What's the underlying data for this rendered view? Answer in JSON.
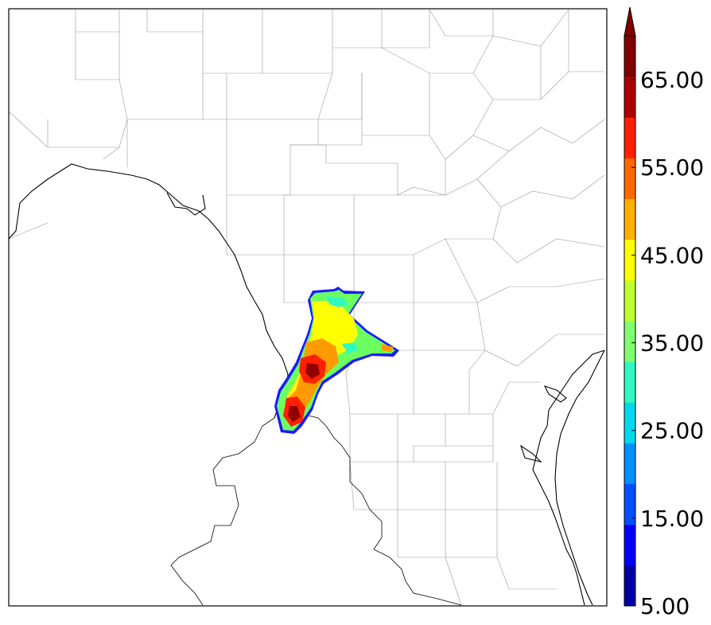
{
  "colorbar": {
    "min": 5,
    "max": 70,
    "step": 5,
    "extend": "max",
    "tick_labels": [
      "5.00",
      "15.00",
      "25.00",
      "35.00",
      "45.00",
      "55.00",
      "65.00"
    ],
    "colors": [
      "#0000a8",
      "#0000ff",
      "#0050ff",
      "#0090ff",
      "#00d8f0",
      "#30f8c0",
      "#80ff70",
      "#c0ff30",
      "#ffff00",
      "#ffb000",
      "#ff6800",
      "#ff2000",
      "#b00000",
      "#800000"
    ]
  },
  "legend": {
    "placement": "right",
    "orientation": "vertical"
  },
  "map": {
    "features": [
      "county boundaries",
      "state boundary",
      "international border",
      "gulf coastline"
    ]
  }
}
